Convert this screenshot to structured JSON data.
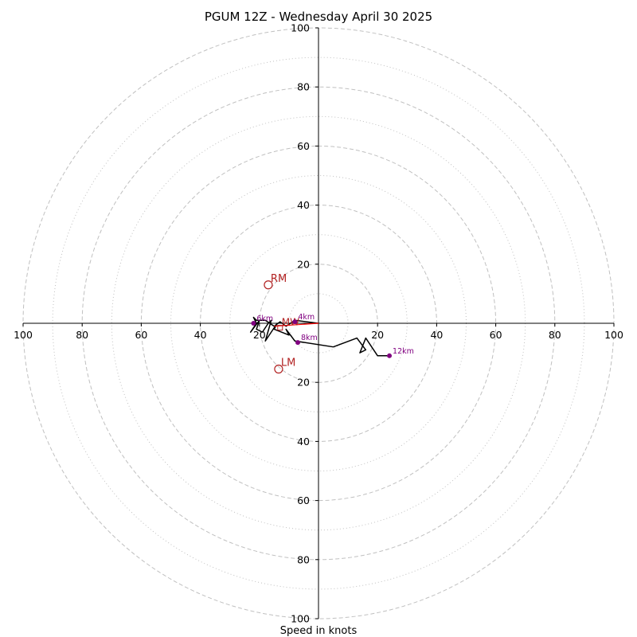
{
  "chart_data": {
    "type": "hodograph",
    "title": "PGUM 12Z - Wednesday April 30 2025",
    "xlabel": "Speed in knots",
    "unit": "knots",
    "max_speed": 100,
    "ring_major": [
      20,
      40,
      60,
      80,
      100
    ],
    "ring_minor": [
      10,
      30,
      50,
      70,
      90
    ],
    "ticks": {
      "x_left": [
        "100",
        "80",
        "60",
        "40",
        "20"
      ],
      "x_right": [
        "20",
        "40",
        "60",
        "80",
        "100"
      ],
      "y_top": [
        "100",
        "80",
        "60",
        "40",
        "20"
      ],
      "y_bottom": [
        "20",
        "40",
        "60",
        "80",
        "100"
      ]
    },
    "series": [
      {
        "points": [
          [
            0,
            0
          ],
          [
            -8,
            1
          ],
          [
            -11,
            -1
          ],
          [
            -13,
            0.5
          ],
          [
            -15,
            -1
          ],
          [
            -18,
            1
          ],
          [
            -21,
            1
          ],
          [
            -22,
            2
          ],
          [
            -21,
            0
          ],
          [
            -23,
            -3
          ],
          [
            -20,
            1
          ],
          [
            -21,
            -2
          ],
          [
            -19,
            -3
          ],
          [
            -17,
            0
          ],
          [
            -16,
            1
          ],
          [
            -18,
            -6
          ],
          [
            -16,
            -3
          ],
          [
            -14,
            0
          ],
          [
            -15,
            -2
          ],
          [
            -10,
            -4
          ],
          [
            -11,
            -2
          ],
          [
            -8,
            -6
          ],
          [
            5,
            -8
          ],
          [
            13,
            -5
          ],
          [
            16,
            -9
          ],
          [
            14,
            -10
          ],
          [
            16,
            -5
          ],
          [
            20,
            -11
          ],
          [
            24,
            -11
          ]
        ],
        "color": "#000000"
      }
    ],
    "markers": [
      {
        "label": "4km",
        "u": -8,
        "v": 0.5
      },
      {
        "label": "6km",
        "u": -22,
        "v": 0
      },
      {
        "label": "8km",
        "u": -7,
        "v": -6.5
      },
      {
        "label": "12km",
        "u": 24,
        "v": -11
      }
    ],
    "storm_motion": [
      {
        "label": "RM",
        "u": -17,
        "v": 13
      },
      {
        "label": "LM",
        "u": -13.5,
        "v": -15.5
      }
    ],
    "mean_wind_label": "MW",
    "colors": {
      "trace": "#000000",
      "height_markers": "#800080",
      "storm_motion": "#b22222",
      "shear_line": "#ff0000",
      "rings": "#c0c0c0"
    }
  }
}
